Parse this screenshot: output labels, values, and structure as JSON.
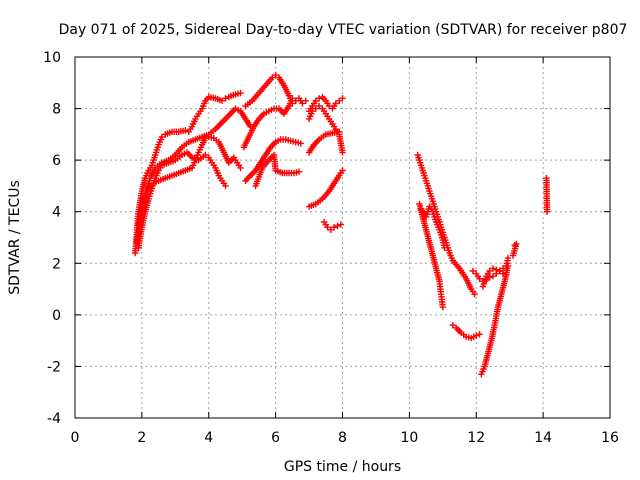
{
  "chart_data": {
    "type": "scatter",
    "title": "Day 071 of 2025, Sidereal Day-to-day VTEC variation (SDTVAR) for receiver p807",
    "xlabel": "GPS time / hours",
    "ylabel": "SDTVAR / TECUs",
    "xlim": [
      0,
      16
    ],
    "ylim": [
      -4,
      10
    ],
    "xticks": [
      "0",
      "2",
      "4",
      "6",
      "8",
      "10",
      "12",
      "14",
      "16"
    ],
    "yticks": [
      "-4",
      "-2",
      "0",
      "2",
      "4",
      "6",
      "8",
      "10"
    ],
    "grid": true,
    "marker": "+",
    "color": "#ff0000",
    "series": [
      {
        "points": [
          [
            1.8,
            2.4
          ],
          [
            1.85,
            3.2
          ],
          [
            1.9,
            4.0
          ],
          [
            2.0,
            4.8
          ],
          [
            2.1,
            5.3
          ],
          [
            2.2,
            5.6
          ],
          [
            2.3,
            5.8
          ],
          [
            2.4,
            6.2
          ],
          [
            2.5,
            6.6
          ],
          [
            2.6,
            6.9
          ],
          [
            2.7,
            7.0
          ],
          [
            2.9,
            7.1
          ],
          [
            3.1,
            7.1
          ],
          [
            3.3,
            7.15
          ],
          [
            3.4,
            7.1
          ],
          [
            3.5,
            7.3
          ],
          [
            3.6,
            7.6
          ],
          [
            3.7,
            7.8
          ],
          [
            3.8,
            8.0
          ],
          [
            3.9,
            8.3
          ],
          [
            4.0,
            8.45
          ],
          [
            4.2,
            8.4
          ],
          [
            4.4,
            8.3
          ],
          [
            4.5,
            8.4
          ],
          [
            4.6,
            8.45
          ],
          [
            4.8,
            8.55
          ],
          [
            4.95,
            8.6
          ]
        ]
      },
      {
        "points": [
          [
            1.85,
            2.8
          ],
          [
            1.95,
            3.6
          ],
          [
            2.05,
            4.3
          ],
          [
            2.15,
            4.9
          ],
          [
            2.25,
            5.3
          ],
          [
            2.4,
            5.7
          ],
          [
            2.6,
            5.9
          ],
          [
            2.8,
            6.0
          ],
          [
            3.0,
            6.2
          ],
          [
            3.2,
            6.5
          ],
          [
            3.4,
            6.7
          ],
          [
            3.6,
            6.8
          ],
          [
            3.8,
            6.9
          ],
          [
            4.0,
            7.0
          ],
          [
            4.2,
            7.2
          ],
          [
            4.35,
            7.4
          ],
          [
            4.5,
            7.6
          ],
          [
            4.65,
            7.8
          ],
          [
            4.8,
            8.0
          ],
          [
            4.95,
            7.9
          ],
          [
            5.1,
            7.6
          ],
          [
            5.25,
            7.3
          ]
        ]
      },
      {
        "points": [
          [
            1.9,
            3.5
          ],
          [
            2.0,
            4.2
          ],
          [
            2.1,
            4.6
          ],
          [
            2.2,
            4.9
          ],
          [
            2.35,
            5.1
          ],
          [
            2.5,
            5.2
          ],
          [
            2.7,
            5.3
          ],
          [
            2.9,
            5.4
          ],
          [
            3.1,
            5.5
          ],
          [
            3.3,
            5.6
          ],
          [
            3.5,
            5.7
          ],
          [
            3.6,
            6.0
          ],
          [
            3.7,
            6.3
          ],
          [
            3.8,
            6.6
          ],
          [
            3.9,
            6.85
          ],
          [
            4.0,
            6.9
          ],
          [
            4.15,
            6.85
          ],
          [
            4.3,
            6.7
          ],
          [
            4.45,
            6.3
          ],
          [
            4.6,
            5.9
          ],
          [
            4.75,
            6.1
          ],
          [
            4.85,
            5.9
          ],
          [
            4.95,
            5.7
          ]
        ]
      },
      {
        "points": [
          [
            1.9,
            2.6
          ],
          [
            2.0,
            3.4
          ],
          [
            2.1,
            4.0
          ],
          [
            2.2,
            4.5
          ],
          [
            2.3,
            4.9
          ],
          [
            2.4,
            5.3
          ],
          [
            2.5,
            5.6
          ],
          [
            2.6,
            5.8
          ],
          [
            2.8,
            5.9
          ],
          [
            3.0,
            6.0
          ],
          [
            3.2,
            6.2
          ],
          [
            3.35,
            6.3
          ],
          [
            3.5,
            6.1
          ],
          [
            3.7,
            6.0
          ],
          [
            3.9,
            6.2
          ],
          [
            4.0,
            6.1
          ],
          [
            4.1,
            5.9
          ],
          [
            4.2,
            5.7
          ],
          [
            4.3,
            5.4
          ],
          [
            4.4,
            5.2
          ],
          [
            4.5,
            5.0
          ]
        ]
      },
      {
        "points": [
          [
            5.1,
            8.1
          ],
          [
            5.3,
            8.3
          ],
          [
            5.5,
            8.6
          ],
          [
            5.7,
            8.9
          ],
          [
            5.9,
            9.2
          ],
          [
            6.0,
            9.3
          ],
          [
            6.1,
            9.2
          ],
          [
            6.25,
            8.9
          ],
          [
            6.4,
            8.5
          ],
          [
            6.5,
            8.2
          ],
          [
            6.6,
            8.3
          ],
          [
            6.7,
            8.4
          ],
          [
            6.8,
            8.2
          ],
          [
            6.9,
            8.3
          ]
        ]
      },
      {
        "points": [
          [
            5.05,
            6.5
          ],
          [
            5.2,
            6.9
          ],
          [
            5.35,
            7.3
          ],
          [
            5.5,
            7.6
          ],
          [
            5.65,
            7.8
          ],
          [
            5.8,
            7.9
          ],
          [
            5.95,
            8.0
          ],
          [
            6.1,
            8.0
          ],
          [
            6.25,
            7.8
          ],
          [
            6.4,
            8.1
          ],
          [
            6.5,
            8.4
          ],
          [
            6.6,
            8.3
          ]
        ]
      },
      {
        "points": [
          [
            5.1,
            5.2
          ],
          [
            5.25,
            5.4
          ],
          [
            5.4,
            5.6
          ],
          [
            5.55,
            5.9
          ],
          [
            5.7,
            6.2
          ],
          [
            5.85,
            6.5
          ],
          [
            6.0,
            6.7
          ],
          [
            6.15,
            6.8
          ],
          [
            6.3,
            6.8
          ],
          [
            6.45,
            6.75
          ],
          [
            6.6,
            6.7
          ],
          [
            6.75,
            6.65
          ]
        ]
      },
      {
        "points": [
          [
            5.4,
            5.0
          ],
          [
            5.6,
            5.7
          ],
          [
            5.8,
            6.0
          ],
          [
            5.95,
            6.2
          ],
          [
            6.0,
            5.6
          ],
          [
            6.2,
            5.5
          ],
          [
            6.4,
            5.5
          ],
          [
            6.55,
            5.5
          ],
          [
            6.7,
            5.55
          ]
        ]
      },
      {
        "points": [
          [
            7.0,
            7.9
          ],
          [
            7.1,
            8.1
          ],
          [
            7.2,
            8.3
          ],
          [
            7.3,
            8.4
          ],
          [
            7.4,
            8.45
          ],
          [
            7.5,
            8.3
          ],
          [
            7.6,
            8.1
          ],
          [
            7.7,
            8.0
          ],
          [
            7.8,
            8.2
          ],
          [
            7.9,
            8.3
          ],
          [
            8.0,
            8.4
          ]
        ]
      },
      {
        "points": [
          [
            7.0,
            7.6
          ],
          [
            7.1,
            7.9
          ],
          [
            7.2,
            8.0
          ],
          [
            7.3,
            8.1
          ],
          [
            7.4,
            8.0
          ],
          [
            7.5,
            7.8
          ],
          [
            7.6,
            7.6
          ],
          [
            7.7,
            7.4
          ],
          [
            7.8,
            7.2
          ],
          [
            7.9,
            7.0
          ],
          [
            8.0,
            6.3
          ]
        ]
      },
      {
        "points": [
          [
            7.0,
            6.3
          ],
          [
            7.15,
            6.6
          ],
          [
            7.3,
            6.8
          ],
          [
            7.5,
            7.0
          ],
          [
            7.7,
            7.05
          ],
          [
            7.9,
            7.1
          ]
        ]
      },
      {
        "points": [
          [
            7.0,
            4.2
          ],
          [
            7.2,
            4.3
          ],
          [
            7.4,
            4.5
          ],
          [
            7.6,
            4.8
          ],
          [
            7.75,
            5.1
          ],
          [
            7.9,
            5.4
          ],
          [
            8.0,
            5.6
          ]
        ]
      },
      {
        "points": [
          [
            7.45,
            3.6
          ],
          [
            7.55,
            3.4
          ],
          [
            7.65,
            3.3
          ],
          [
            7.75,
            3.4
          ],
          [
            7.85,
            3.45
          ],
          [
            7.95,
            3.5
          ]
        ]
      },
      {
        "points": [
          [
            10.25,
            6.2
          ],
          [
            10.35,
            5.8
          ],
          [
            10.45,
            5.4
          ],
          [
            10.55,
            5.0
          ],
          [
            10.65,
            4.6
          ],
          [
            10.75,
            4.2
          ],
          [
            10.85,
            3.8
          ],
          [
            10.95,
            3.4
          ],
          [
            11.05,
            3.0
          ],
          [
            11.1,
            2.8
          ],
          [
            11.2,
            2.4
          ],
          [
            11.3,
            2.1
          ],
          [
            11.5,
            1.8
          ],
          [
            11.7,
            1.4
          ],
          [
            11.85,
            1.0
          ],
          [
            11.95,
            0.8
          ]
        ]
      },
      {
        "points": [
          [
            10.3,
            4.3
          ],
          [
            10.4,
            3.8
          ],
          [
            10.5,
            3.3
          ],
          [
            10.6,
            2.8
          ],
          [
            10.7,
            2.3
          ],
          [
            10.8,
            1.8
          ],
          [
            10.9,
            1.3
          ],
          [
            10.95,
            0.8
          ],
          [
            11.0,
            0.3
          ]
        ]
      },
      {
        "points": [
          [
            10.35,
            4.1
          ],
          [
            10.5,
            3.8
          ],
          [
            10.6,
            4.2
          ],
          [
            10.7,
            4.0
          ],
          [
            10.8,
            3.6
          ],
          [
            10.9,
            3.3
          ],
          [
            11.0,
            2.9
          ],
          [
            11.05,
            2.6
          ]
        ]
      },
      {
        "points": [
          [
            11.3,
            -0.4
          ],
          [
            11.4,
            -0.5
          ],
          [
            11.55,
            -0.7
          ],
          [
            11.7,
            -0.85
          ],
          [
            11.85,
            -0.9
          ],
          [
            12.0,
            -0.8
          ],
          [
            12.1,
            -0.75
          ]
        ]
      },
      {
        "points": [
          [
            11.9,
            1.7
          ],
          [
            12.0,
            1.6
          ],
          [
            12.1,
            1.4
          ],
          [
            12.2,
            1.3
          ],
          [
            12.3,
            1.35
          ],
          [
            12.4,
            1.45
          ],
          [
            12.5,
            1.5
          ],
          [
            12.6,
            1.6
          ],
          [
            12.7,
            1.7
          ],
          [
            12.8,
            1.8
          ],
          [
            12.9,
            1.9
          ],
          [
            12.95,
            2.2
          ]
        ]
      },
      {
        "points": [
          [
            12.2,
            1.1
          ],
          [
            12.3,
            1.5
          ],
          [
            12.4,
            1.7
          ],
          [
            12.5,
            1.8
          ],
          [
            12.6,
            1.75
          ],
          [
            12.7,
            1.7
          ],
          [
            12.8,
            1.6
          ],
          [
            12.9,
            1.55
          ]
        ]
      },
      {
        "points": [
          [
            12.15,
            -2.3
          ],
          [
            12.25,
            -2.0
          ],
          [
            12.35,
            -1.5
          ],
          [
            12.45,
            -1.0
          ],
          [
            12.55,
            -0.4
          ],
          [
            12.65,
            0.3
          ],
          [
            12.75,
            0.8
          ],
          [
            12.85,
            1.3
          ],
          [
            12.95,
            1.9
          ]
        ]
      },
      {
        "points": [
          [
            13.15,
            2.7
          ],
          [
            13.2,
            2.75
          ],
          [
            13.1,
            2.3
          ]
        ]
      },
      {
        "points": [
          [
            14.1,
            5.3
          ],
          [
            14.12,
            4.0
          ]
        ]
      }
    ]
  }
}
